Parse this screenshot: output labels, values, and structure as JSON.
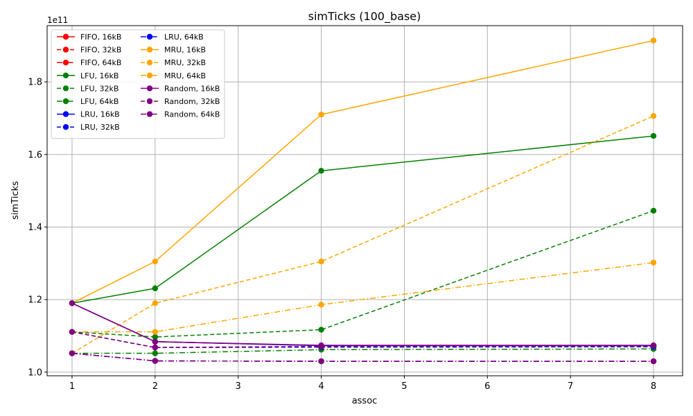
{
  "chart_data": {
    "type": "line",
    "title": "simTicks (100_base)",
    "xlabel": "assoc",
    "ylabel": "simTicks",
    "y_offset_label": "1e11",
    "xlim": [
      0.7,
      8.35
    ],
    "ylim": [
      0.99,
      1.955
    ],
    "x_ticks": [
      1,
      2,
      3,
      4,
      5,
      6,
      7,
      8
    ],
    "y_ticks": [
      1.0,
      1.2,
      1.4,
      1.6,
      1.8
    ],
    "y_tick_labels": [
      "1.0",
      "1.2",
      "1.4",
      "1.6",
      "1.8"
    ],
    "grid": true,
    "legend_location": "upper-left",
    "legend_columns": 2,
    "x": [
      1,
      2,
      4,
      8
    ],
    "series": [
      {
        "name": "FIFO, 16kB",
        "color": "#ff0000",
        "dash": "solid",
        "values": [
          1.19,
          1.084,
          1.073,
          1.073
        ]
      },
      {
        "name": "FIFO, 32kB",
        "color": "#ff0000",
        "dash": "dashed",
        "values": [
          1.111,
          1.068,
          1.069,
          1.07
        ]
      },
      {
        "name": "FIFO, 64kB",
        "color": "#ff0000",
        "dash": "dashdot",
        "values": [
          1.052,
          1.031,
          1.03,
          1.03
        ]
      },
      {
        "name": "LFU, 16kB",
        "color": "#008000",
        "dash": "solid",
        "values": [
          1.19,
          1.231,
          1.555,
          1.651
        ]
      },
      {
        "name": "LFU, 32kB",
        "color": "#008000",
        "dash": "dashed",
        "values": [
          1.111,
          1.097,
          1.117,
          1.445
        ]
      },
      {
        "name": "LFU, 64kB",
        "color": "#008000",
        "dash": "dashdot",
        "values": [
          1.052,
          1.052,
          1.062,
          1.064
        ]
      },
      {
        "name": "LRU, 16kB",
        "color": "#0000ff",
        "dash": "solid",
        "values": [
          1.19,
          1.084,
          1.073,
          1.073
        ]
      },
      {
        "name": "LRU, 32kB",
        "color": "#0000ff",
        "dash": "dashed",
        "values": [
          1.111,
          1.068,
          1.069,
          1.07
        ]
      },
      {
        "name": "LRU, 64kB",
        "color": "#0000ff",
        "dash": "dashdot",
        "values": [
          1.052,
          1.031,
          1.03,
          1.03
        ]
      },
      {
        "name": "MRU, 16kB",
        "color": "#ffa500",
        "dash": "solid",
        "values": [
          1.19,
          1.305,
          1.71,
          1.914
        ]
      },
      {
        "name": "MRU, 32kB",
        "color": "#ffa500",
        "dash": "dashed",
        "values": [
          1.052,
          1.19,
          1.305,
          1.706
        ]
      },
      {
        "name": "MRU, 64kB",
        "color": "#ffa500",
        "dash": "dashdot",
        "values": [
          1.111,
          1.111,
          1.186,
          1.302
        ]
      },
      {
        "name": "Random, 16kB",
        "color": "#800080",
        "dash": "solid",
        "values": [
          1.19,
          1.084,
          1.074,
          1.074
        ]
      },
      {
        "name": "Random, 32kB",
        "color": "#800080",
        "dash": "dashed",
        "values": [
          1.111,
          1.068,
          1.071,
          1.072
        ]
      },
      {
        "name": "Random, 64kB",
        "color": "#800080",
        "dash": "dashdot",
        "values": [
          1.052,
          1.031,
          1.03,
          1.03
        ]
      }
    ]
  }
}
